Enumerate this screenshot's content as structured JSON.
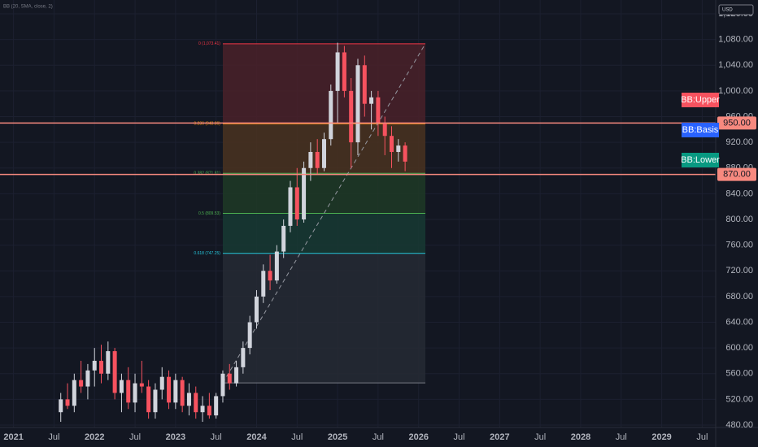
{
  "chart_data": {
    "type": "candlestick",
    "indicator": "BB (20, SMA, close, 2)",
    "currency": "USD",
    "up_color": "#d1d4dc",
    "down_color": "#f7525f",
    "x": [
      "2021-08",
      "2021-09",
      "2021-10",
      "2021-11",
      "2021-12",
      "2022-01",
      "2022-02",
      "2022-03",
      "2022-04",
      "2022-05",
      "2022-06",
      "2022-07",
      "2022-08",
      "2022-09",
      "2022-10",
      "2022-11",
      "2022-12",
      "2023-01",
      "2023-02",
      "2023-03",
      "2023-04",
      "2023-05",
      "2023-06",
      "2023-07",
      "2023-08",
      "2023-09",
      "2023-10",
      "2023-11",
      "2023-12",
      "2024-01",
      "2024-02",
      "2024-03",
      "2024-04",
      "2024-05",
      "2024-06",
      "2024-07",
      "2024-08",
      "2024-09",
      "2024-10",
      "2024-11",
      "2024-12",
      "2025-01",
      "2025-02",
      "2025-03",
      "2025-04",
      "2025-05",
      "2025-06",
      "2025-07",
      "2025-08",
      "2025-09",
      "2025-10",
      "2025-11"
    ],
    "open": [
      500,
      520,
      510,
      550,
      540,
      565,
      580,
      560,
      595,
      530,
      550,
      515,
      545,
      540,
      500,
      535,
      555,
      515,
      550,
      510,
      530,
      500,
      510,
      495,
      525,
      560,
      545,
      570,
      600,
      640,
      680,
      720,
      705,
      750,
      790,
      850,
      800,
      880,
      905,
      880,
      925,
      1000,
      1060,
      1000,
      920,
      1040,
      980,
      990,
      950,
      930,
      905,
      915
    ],
    "high": [
      530,
      545,
      560,
      580,
      575,
      600,
      605,
      610,
      600,
      560,
      570,
      560,
      580,
      550,
      545,
      570,
      565,
      560,
      555,
      545,
      540,
      525,
      530,
      530,
      565,
      575,
      580,
      610,
      650,
      690,
      730,
      745,
      760,
      800,
      860,
      880,
      890,
      920,
      925,
      935,
      1010,
      1075,
      1070,
      1020,
      1050,
      1055,
      1000,
      1000,
      960,
      945,
      925,
      920
    ],
    "low": [
      485,
      505,
      500,
      530,
      520,
      540,
      545,
      550,
      520,
      500,
      505,
      500,
      530,
      490,
      490,
      520,
      505,
      505,
      500,
      495,
      490,
      485,
      490,
      490,
      515,
      535,
      540,
      560,
      590,
      630,
      670,
      690,
      700,
      740,
      780,
      790,
      795,
      860,
      870,
      875,
      915,
      950,
      990,
      880,
      900,
      960,
      940,
      930,
      900,
      880,
      890,
      875
    ],
    "close": [
      520,
      510,
      550,
      540,
      565,
      580,
      560,
      595,
      530,
      550,
      515,
      545,
      540,
      500,
      535,
      555,
      515,
      550,
      510,
      530,
      500,
      510,
      495,
      525,
      560,
      545,
      570,
      600,
      640,
      680,
      720,
      705,
      750,
      790,
      850,
      800,
      880,
      905,
      880,
      925,
      1000,
      1060,
      1000,
      920,
      1040,
      980,
      990,
      950,
      930,
      905,
      915,
      890
    ],
    "xlim": [
      "2020-11",
      "2029-09"
    ],
    "xticks": [
      {
        "value": "2021-01",
        "label": "2021"
      },
      {
        "value": "2021-07",
        "label": "Jul"
      },
      {
        "value": "2022-01",
        "label": "2022"
      },
      {
        "value": "2022-07",
        "label": "Jul"
      },
      {
        "value": "2023-01",
        "label": "2023"
      },
      {
        "value": "2023-07",
        "label": "Jul"
      },
      {
        "value": "2024-01",
        "label": "2024"
      },
      {
        "value": "2024-07",
        "label": "Jul"
      },
      {
        "value": "2025-01",
        "label": "2025"
      },
      {
        "value": "2025-07",
        "label": "Jul"
      },
      {
        "value": "2026-01",
        "label": "2026"
      },
      {
        "value": "2026-07",
        "label": "Jul"
      },
      {
        "value": "2027-01",
        "label": "2027"
      },
      {
        "value": "2027-07",
        "label": "Jul"
      },
      {
        "value": "2028-01",
        "label": "2028"
      },
      {
        "value": "2028-07",
        "label": "Jul"
      },
      {
        "value": "2029-01",
        "label": "2029"
      },
      {
        "value": "2029-07",
        "label": "Jul"
      }
    ],
    "ylim": [
      480,
      1120
    ],
    "yticks": [
      {
        "value": 480,
        "label": "480.00"
      },
      {
        "value": 520,
        "label": "520.00"
      },
      {
        "value": 560,
        "label": "560.00"
      },
      {
        "value": 600,
        "label": "600.00"
      },
      {
        "value": 640,
        "label": "640.00"
      },
      {
        "value": 680,
        "label": "680.00"
      },
      {
        "value": 720,
        "label": "720.00"
      },
      {
        "value": 760,
        "label": "760.00"
      },
      {
        "value": 800,
        "label": "800.00"
      },
      {
        "value": 840,
        "label": "840.00"
      },
      {
        "value": 880,
        "label": "880.00"
      },
      {
        "value": 920,
        "label": "920.00"
      },
      {
        "value": 960,
        "label": "960.00"
      },
      {
        "value": 1000,
        "label": "1,000.00"
      },
      {
        "value": 1040,
        "label": "1,040.00"
      },
      {
        "value": 1080,
        "label": "1,080.00"
      },
      {
        "value": 1120,
        "label": "1,120.00"
      }
    ],
    "fib": {
      "from": "2023-08",
      "to": "2026-02",
      "levels": [
        {
          "price": 1073.41,
          "label": "0 (1,073.41)",
          "color": "#f23645",
          "fill": "#4a2129"
        },
        {
          "price": 948.86,
          "label": "0.236 (948.86)",
          "color": "#ff9800",
          "fill": "#4a3220"
        },
        {
          "price": 871.81,
          "label": "0.382 (871.81)",
          "color": "#4caf50",
          "fill": "#1f3a26"
        },
        {
          "price": 809.53,
          "label": "0.5 (809.53)",
          "color": "#4caf50",
          "fill": "#173a33"
        },
        {
          "price": 747.25,
          "label": "0.618 (747.25)",
          "color": "#26c6da",
          "fill": "#262a34"
        },
        {
          "price": 545.65,
          "color": "#787b86"
        }
      ]
    },
    "trendline": {
      "from": [
        "2023-08",
        545.65
      ],
      "to": [
        "2026-02",
        1073.41
      ]
    },
    "hlines": [
      {
        "value": 950,
        "label": "950.00",
        "color": "#f7897f"
      },
      {
        "value": 870,
        "label": "870.00",
        "color": "#f7897f"
      }
    ],
    "bb_labels": [
      {
        "text": "BB:Upper",
        "color": "#f7525f"
      },
      {
        "text": "BB:Basis",
        "color": "#2962ff"
      },
      {
        "text": "BB:Lower",
        "color": "#089981"
      }
    ]
  }
}
